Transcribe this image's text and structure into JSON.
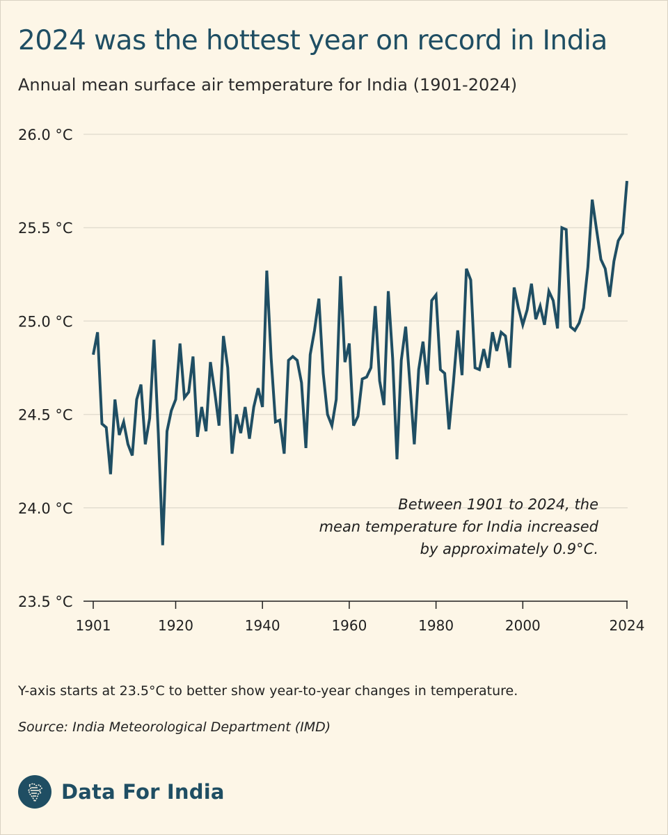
{
  "header": {
    "title": "2024 was the hottest year on record in India",
    "subtitle": "Annual mean surface air temperature for India (1901-2024)"
  },
  "footer": {
    "note": "Y-axis starts at 23.5°C to better show year-to-year changes in temperature.",
    "source": "Source: India Meteorological Department (IMD)",
    "brand": "Data For India"
  },
  "colors": {
    "background": "#fdf6e7",
    "line": "#1f4e63",
    "title": "#1f4e63",
    "grid": "#e3ddd0"
  },
  "chart_data": {
    "type": "line",
    "title": "2024 was the hottest year on record in India",
    "subtitle": "Annual mean surface air temperature for India (1901-2024)",
    "xlabel": "",
    "ylabel": "",
    "xlim": [
      1901,
      2024
    ],
    "ylim": [
      23.5,
      26.0
    ],
    "x_ticks": [
      1901,
      1920,
      1940,
      1960,
      1980,
      2000,
      2024
    ],
    "y_ticks": [
      {
        "value": 23.5,
        "label": "23.5 °C"
      },
      {
        "value": 24.0,
        "label": "24.0 °C"
      },
      {
        "value": 24.5,
        "label": "24.5 °C"
      },
      {
        "value": 25.0,
        "label": "25.0 °C"
      },
      {
        "value": 25.5,
        "label": "25.5 °C"
      },
      {
        "value": 26.0,
        "label": "26.0 °C"
      }
    ],
    "grid": "horizontal",
    "annotation": "Between 1901 to 2024, the mean temperature for India increased by approximately 0.9°C.",
    "series": [
      {
        "color": "#1f4e63",
        "x": [
          1901,
          1902,
          1903,
          1904,
          1905,
          1906,
          1907,
          1908,
          1909,
          1910,
          1911,
          1912,
          1913,
          1914,
          1915,
          1916,
          1917,
          1918,
          1919,
          1920,
          1921,
          1922,
          1923,
          1924,
          1925,
          1926,
          1927,
          1928,
          1929,
          1930,
          1931,
          1932,
          1933,
          1934,
          1935,
          1936,
          1937,
          1938,
          1939,
          1940,
          1941,
          1942,
          1943,
          1944,
          1945,
          1946,
          1947,
          1948,
          1949,
          1950,
          1951,
          1952,
          1953,
          1954,
          1955,
          1956,
          1957,
          1958,
          1959,
          1960,
          1961,
          1962,
          1963,
          1964,
          1965,
          1966,
          1967,
          1968,
          1969,
          1970,
          1971,
          1972,
          1973,
          1974,
          1975,
          1976,
          1977,
          1978,
          1979,
          1980,
          1981,
          1982,
          1983,
          1984,
          1985,
          1986,
          1987,
          1988,
          1989,
          1990,
          1991,
          1992,
          1993,
          1994,
          1995,
          1996,
          1997,
          1998,
          1999,
          2000,
          2001,
          2002,
          2003,
          2004,
          2005,
          2006,
          2007,
          2008,
          2009,
          2010,
          2011,
          2012,
          2013,
          2014,
          2015,
          2016,
          2017,
          2018,
          2019,
          2020,
          2021,
          2022,
          2023,
          2024
        ],
        "y": [
          24.82,
          24.94,
          24.45,
          24.43,
          24.18,
          24.58,
          24.39,
          24.46,
          24.34,
          24.28,
          24.58,
          24.66,
          24.34,
          24.48,
          24.9,
          24.4,
          23.8,
          24.41,
          24.52,
          24.58,
          24.88,
          24.59,
          24.62,
          24.81,
          24.38,
          24.54,
          24.41,
          24.78,
          24.62,
          24.44,
          24.92,
          24.75,
          24.29,
          24.5,
          24.4,
          24.54,
          24.37,
          24.54,
          24.64,
          24.54,
          25.27,
          24.8,
          24.46,
          24.47,
          24.29,
          24.79,
          24.81,
          24.79,
          24.67,
          24.32,
          24.82,
          24.95,
          25.12,
          24.72,
          24.5,
          24.44,
          24.58,
          25.24,
          24.78,
          24.88,
          24.44,
          24.49,
          24.69,
          24.7,
          24.75,
          25.08,
          24.68,
          24.55,
          25.16,
          24.8,
          24.26,
          24.79,
          24.97,
          24.66,
          24.34,
          24.74,
          24.89,
          24.66,
          25.11,
          25.14,
          24.74,
          24.72,
          24.42,
          24.67,
          24.95,
          24.71,
          25.28,
          25.22,
          24.75,
          24.74,
          24.85,
          24.75,
          24.94,
          24.84,
          24.94,
          24.92,
          24.75,
          25.18,
          25.07,
          24.98,
          25.06,
          25.2,
          25.01,
          25.08,
          24.98,
          25.16,
          25.11,
          24.96,
          25.5,
          25.49,
          24.97,
          24.95,
          24.99,
          25.07,
          25.29,
          25.65,
          25.49,
          25.33,
          25.28,
          25.13,
          25.32,
          25.43,
          25.47,
          25.75
        ]
      }
    ]
  }
}
